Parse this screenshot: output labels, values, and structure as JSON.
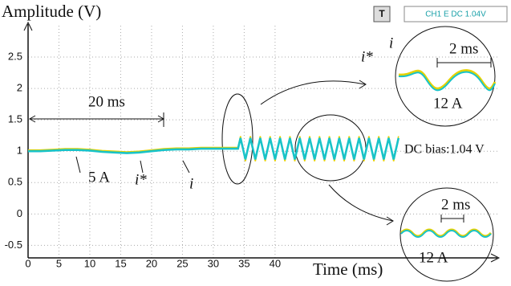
{
  "chart_data": {
    "type": "line",
    "title": "Amplitude (V)",
    "x_label": "Time (ms)",
    "x": [
      0,
      2,
      4,
      6,
      8,
      10,
      12,
      14,
      16,
      18,
      20,
      22,
      24,
      26,
      28,
      30,
      32,
      34,
      34.4,
      34.8,
      35.2,
      35.6,
      36,
      36.4,
      36.8,
      37.2,
      37.6,
      38,
      38.4,
      38.8,
      39.2,
      39.6,
      40,
      40.4,
      40.8,
      41.2,
      41.6,
      42,
      42.4,
      42.8,
      43.2,
      43.6,
      44,
      44.4,
      44.8,
      45.2,
      45.6,
      46,
      46.4,
      46.8,
      47.2,
      47.6,
      48,
      48.4,
      48.8,
      49.2,
      49.6,
      50,
      50.4,
      50.8,
      51.2,
      51.6,
      52,
      52.4,
      52.8,
      53.2,
      53.6,
      54,
      54.4,
      54.8,
      55.2,
      55.6,
      56,
      56.4,
      56.8,
      57.2,
      57.6,
      58,
      58.4,
      58.8,
      59.2,
      59.6,
      60
    ],
    "series": [
      {
        "name": "i*",
        "color": "#19c3c8",
        "values": [
          1.0,
          1.0,
          1.01,
          1.02,
          1.02,
          1.01,
          0.99,
          0.98,
          0.97,
          0.98,
          1.0,
          1.02,
          1.03,
          1.03,
          1.04,
          1.04,
          1.04,
          1.04,
          1.21,
          1.04,
          0.87,
          1.04,
          1.21,
          1.04,
          0.87,
          1.04,
          1.21,
          1.04,
          0.87,
          1.04,
          1.21,
          1.04,
          0.87,
          1.04,
          1.21,
          1.04,
          0.87,
          1.04,
          1.21,
          1.04,
          0.87,
          1.04,
          1.21,
          1.04,
          0.87,
          1.04,
          1.21,
          1.04,
          0.87,
          1.04,
          1.21,
          1.04,
          0.87,
          1.04,
          1.21,
          1.04,
          0.87,
          1.04,
          1.21,
          1.04,
          0.87,
          1.04,
          1.21,
          1.04,
          0.87,
          1.04,
          1.21,
          1.04,
          0.87,
          1.04,
          1.21,
          1.04,
          0.87,
          1.04,
          1.21,
          1.04,
          0.87,
          1.04,
          1.21,
          1.04,
          0.87,
          1.04,
          1.21
        ]
      },
      {
        "name": "i",
        "color": "#e6d200",
        "values": [
          1.02,
          1.02,
          1.03,
          1.04,
          1.04,
          1.03,
          1.01,
          1.0,
          0.99,
          1.0,
          1.02,
          1.04,
          1.05,
          1.05,
          1.06,
          1.06,
          1.06,
          1.06,
          1.24,
          1.04,
          0.84,
          1.04,
          1.24,
          1.04,
          0.84,
          1.04,
          1.24,
          1.04,
          0.84,
          1.04,
          1.24,
          1.04,
          0.84,
          1.04,
          1.24,
          1.04,
          0.84,
          1.04,
          1.24,
          1.04,
          0.84,
          1.04,
          1.24,
          1.04,
          0.84,
          1.04,
          1.24,
          1.04,
          0.84,
          1.04,
          1.24,
          1.04,
          0.84,
          1.04,
          1.24,
          1.04,
          0.84,
          1.04,
          1.24,
          1.04,
          0.84,
          1.04,
          1.24,
          1.04,
          0.84,
          1.04,
          1.24,
          1.04,
          0.84,
          1.04,
          1.24,
          1.04,
          0.84,
          1.04,
          1.24,
          1.04,
          0.84,
          1.04,
          1.24,
          1.04,
          0.84,
          1.04,
          1.24
        ]
      }
    ],
    "xlim": [
      0,
      76
    ],
    "xticks": [
      0,
      5,
      10,
      15,
      20,
      25,
      30,
      35,
      40
    ],
    "ylim": [
      -0.7,
      3.0
    ],
    "yticks": [
      -0.5,
      0,
      0.5,
      1,
      1.5,
      2,
      2.5
    ],
    "grid": true,
    "annotations": {
      "span": "20 ms",
      "five_a": "5 A",
      "ref_label": "i*",
      "meas_label": "i",
      "dc_bias": "DC bias:1.04 V",
      "inset_top_period": "2 ms",
      "inset_top_amp": "12 A",
      "inset_top_i": "i",
      "inset_top_ref": "i*",
      "inset_bottom_period": "2 ms",
      "inset_bottom_amp": "12 A",
      "trigger_mode": "T",
      "channel_status": "CH1 E DC 1.04V"
    }
  }
}
